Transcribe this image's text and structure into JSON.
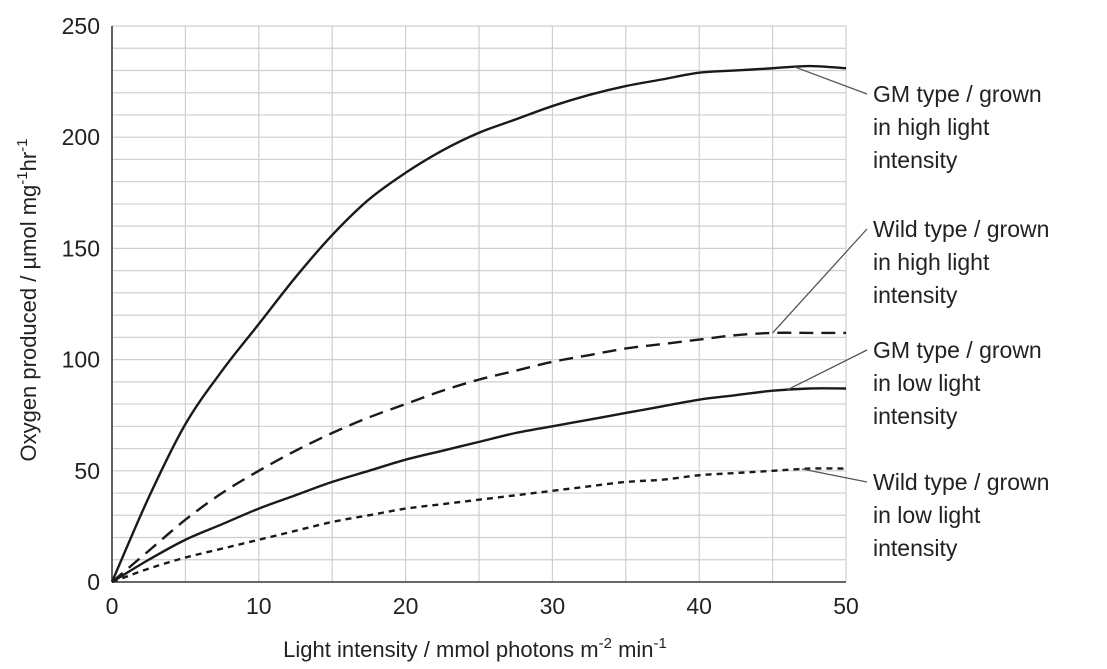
{
  "chart_data": {
    "type": "line",
    "title": "",
    "xlabel": {
      "main": "Light intensity / mmol photons m",
      "sup1": "-2",
      "mid": " min",
      "sup2": "-1"
    },
    "ylabel": {
      "main": "Oxygen produced / µmol mg",
      "sup1": "-1",
      "mid": "hr",
      "sup2": "-1"
    },
    "xlim": [
      0,
      50
    ],
    "ylim": [
      0,
      250
    ],
    "x_ticks": [
      "0",
      "10",
      "20",
      "30",
      "40",
      "50"
    ],
    "y_ticks": [
      "0",
      "50",
      "100",
      "150",
      "200",
      "250"
    ],
    "grid": true,
    "grid_minor_x": 5,
    "grid_minor_y": 10,
    "legend": "none",
    "series": [
      {
        "name": "GM type / grown in high light intensity",
        "label_lines": [
          "GM type / grown",
          "in high light",
          "intensity"
        ],
        "style": "solid",
        "x": [
          0,
          2.5,
          5,
          7.5,
          10,
          12.5,
          15,
          17.5,
          20,
          22.5,
          25,
          27.5,
          30,
          32.5,
          35,
          37.5,
          40,
          42.5,
          45,
          47.5,
          50
        ],
        "y": [
          0,
          38,
          71,
          95,
          116,
          137,
          156,
          172,
          184,
          194,
          202,
          208,
          214,
          219,
          223,
          226,
          229,
          230,
          231,
          232,
          231
        ],
        "pointer_x": 46.5
      },
      {
        "name": "Wild type / grown in high light intensity",
        "label_lines": [
          "Wild type / grown",
          "in high light",
          "intensity"
        ],
        "style": "dashed",
        "x": [
          0,
          2.5,
          5,
          7.5,
          10,
          12.5,
          15,
          17.5,
          20,
          22.5,
          25,
          27.5,
          30,
          32.5,
          35,
          37.5,
          40,
          42.5,
          45,
          47.5,
          50
        ],
        "y": [
          0,
          14,
          28,
          40,
          50,
          59,
          67,
          74,
          80,
          86,
          91,
          95,
          99,
          102,
          105,
          107,
          109,
          111,
          112,
          112,
          112
        ],
        "pointer_x": 45
      },
      {
        "name": "GM type / grown in low light intensity",
        "label_lines": [
          "GM type / grown",
          "in low light",
          "intensity"
        ],
        "style": "solid",
        "x": [
          0,
          2.5,
          5,
          7.5,
          10,
          12.5,
          15,
          17.5,
          20,
          22.5,
          25,
          27.5,
          30,
          32.5,
          35,
          37.5,
          40,
          42.5,
          45,
          47.5,
          50
        ],
        "y": [
          0,
          10,
          19,
          26,
          33,
          39,
          45,
          50,
          55,
          59,
          63,
          67,
          70,
          73,
          76,
          79,
          82,
          84,
          86,
          87,
          87
        ],
        "pointer_x": 46
      },
      {
        "name": "Wild type / grown in low light intensity",
        "label_lines": [
          "Wild type / grown",
          "in low light",
          "intensity"
        ],
        "style": "dotted",
        "x": [
          0,
          2.5,
          5,
          7.5,
          10,
          12.5,
          15,
          17.5,
          20,
          22.5,
          25,
          27.5,
          30,
          32.5,
          35,
          37.5,
          40,
          42.5,
          45,
          47.5,
          50
        ],
        "y": [
          0,
          6,
          11,
          15,
          19,
          23,
          27,
          30,
          33,
          35,
          37,
          39,
          41,
          43,
          45,
          46,
          48,
          49,
          50,
          51,
          51
        ],
        "pointer_x": 47
      }
    ]
  }
}
